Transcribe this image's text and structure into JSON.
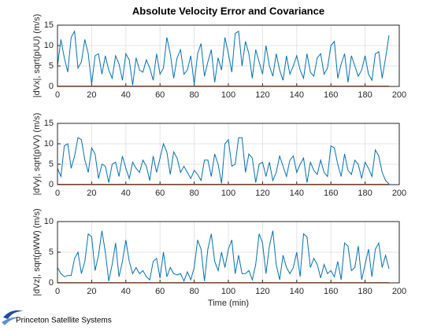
{
  "chart_data": [
    {
      "type": "line",
      "title": "Absolute Velocity Error and Covariance",
      "ylabel": "|dVx|, sqrt(pUU) (m/s)",
      "x": [
        0,
        2,
        4,
        6,
        8,
        10,
        12,
        14,
        16,
        18,
        20,
        22,
        24,
        26,
        28,
        30,
        32,
        34,
        36,
        38,
        40,
        42,
        44,
        46,
        48,
        50,
        52,
        54,
        56,
        58,
        60,
        62,
        64,
        66,
        68,
        70,
        72,
        74,
        76,
        78,
        80,
        82,
        84,
        86,
        88,
        90,
        92,
        94,
        96,
        98,
        100,
        102,
        104,
        106,
        108,
        110,
        112,
        114,
        116,
        118,
        120,
        122,
        124,
        126,
        128,
        130,
        132,
        134,
        136,
        138,
        140,
        142,
        144,
        146,
        148,
        150,
        152,
        154,
        156,
        158,
        160,
        162,
        164,
        166,
        168,
        170,
        172,
        174,
        176,
        178,
        180,
        182,
        184,
        186,
        188,
        190,
        192,
        194
      ],
      "series": [
        {
          "color": "#0072bd",
          "values": [
            5,
            11.5,
            7,
            3.5,
            12,
            13.5,
            4.5,
            6,
            11.5,
            8,
            0.5,
            7.5,
            8,
            3,
            7.5,
            4,
            2,
            7.5,
            5.5,
            1.5,
            8,
            6.5,
            0.3,
            7,
            4,
            3.5,
            6.5,
            4.5,
            1.5,
            8,
            3,
            4.5,
            12,
            8,
            2,
            7,
            9,
            3,
            4,
            7.5,
            0.5,
            8,
            10.5,
            2.5,
            6,
            9,
            1,
            7,
            4,
            12,
            8,
            3.5,
            13,
            13.5,
            5,
            11,
            8,
            2,
            9,
            6,
            3,
            10,
            5,
            2.5,
            8,
            4,
            1.5,
            7.5,
            3,
            5,
            7.5,
            4,
            2,
            8,
            3.5,
            2.5,
            7,
            8,
            3,
            4.5,
            10,
            11,
            2,
            5.5,
            8,
            1,
            7.5,
            5,
            2.5,
            4,
            7.5,
            3,
            1.5,
            8,
            8.5,
            2,
            7,
            12.5
          ]
        },
        {
          "color": "#d95319",
          "values": [
            0.1,
            0.1,
            0.1,
            0.1,
            0.1,
            0.1,
            0.1,
            0.1,
            0.1,
            0.1,
            0.1,
            0.1,
            0.1,
            0.1,
            0.1,
            0.1,
            0.1,
            0.1,
            0.1,
            0.1,
            0.1,
            0.1,
            0.1,
            0.1,
            0.1,
            0.1,
            0.1,
            0.1,
            0.1,
            0.1,
            0.1,
            0.1,
            0.1,
            0.1,
            0.1,
            0.1,
            0.1,
            0.1,
            0.1,
            0.1,
            0.1,
            0.1,
            0.1,
            0.1,
            0.1,
            0.1,
            0.1,
            0.1,
            0.1,
            0.1,
            0.1,
            0.1,
            0.1,
            0.1,
            0.1,
            0.1,
            0.1,
            0.1,
            0.1,
            0.1,
            0.1,
            0.1,
            0.1,
            0.1,
            0.1,
            0.1,
            0.1,
            0.1,
            0.1,
            0.1,
            0.1,
            0.1,
            0.1,
            0.1,
            0.1,
            0.1,
            0.1,
            0.1,
            0.1,
            0.1,
            0.1,
            0.1,
            0.1,
            0.1,
            0.1,
            0.1,
            0.1,
            0.1,
            0.1,
            0.1,
            0.1,
            0.1,
            0.1,
            0.1,
            0.1,
            0.1,
            0.1,
            0.1
          ]
        }
      ],
      "xlim": [
        0,
        200
      ],
      "xticks": [
        0,
        20,
        40,
        60,
        80,
        100,
        120,
        140,
        160,
        180,
        200
      ],
      "ylim": [
        0,
        15
      ],
      "yticks": [
        0,
        5,
        10,
        15
      ],
      "grid": true
    },
    {
      "type": "line",
      "ylabel": "|dVy|, sqrt(pVV) (m/s)",
      "x": [
        0,
        2,
        4,
        6,
        8,
        10,
        12,
        14,
        16,
        18,
        20,
        22,
        24,
        26,
        28,
        30,
        32,
        34,
        36,
        38,
        40,
        42,
        44,
        46,
        48,
        50,
        52,
        54,
        56,
        58,
        60,
        62,
        64,
        66,
        68,
        70,
        72,
        74,
        76,
        78,
        80,
        82,
        84,
        86,
        88,
        90,
        92,
        94,
        96,
        98,
        100,
        102,
        104,
        106,
        108,
        110,
        112,
        114,
        116,
        118,
        120,
        122,
        124,
        126,
        128,
        130,
        132,
        134,
        136,
        138,
        140,
        142,
        144,
        146,
        148,
        150,
        152,
        154,
        156,
        158,
        160,
        162,
        164,
        166,
        168,
        170,
        172,
        174,
        176,
        178,
        180,
        182,
        184,
        186,
        188,
        190,
        192,
        194
      ],
      "series": [
        {
          "color": "#0072bd",
          "values": [
            4,
            2,
            9.5,
            10,
            4,
            7,
            11.5,
            11,
            6,
            3,
            9,
            7.5,
            1.5,
            5,
            4.5,
            0.5,
            5,
            5.5,
            2,
            7,
            4,
            1.5,
            5.5,
            4,
            3,
            6,
            4.5,
            1,
            7,
            3,
            6.5,
            10,
            8,
            2.5,
            8,
            6.5,
            3,
            4.5,
            3,
            1.5,
            3.5,
            2.5,
            1,
            6,
            6,
            2,
            7.5,
            5,
            0.3,
            10,
            11,
            4.5,
            5,
            11.5,
            11.5,
            3,
            7.5,
            6.5,
            0.5,
            5,
            5.5,
            2,
            5.5,
            1,
            3,
            7,
            4.5,
            2,
            6,
            7,
            3,
            5,
            6.5,
            0.5,
            5.5,
            3.5,
            2.5,
            6,
            3,
            2,
            9.5,
            9,
            5,
            2,
            7.5,
            3.5,
            2.5,
            6,
            5,
            1.5,
            5.5,
            4,
            2,
            8.5,
            7,
            3,
            1,
            0.2
          ]
        },
        {
          "color": "#d95319",
          "values": [
            0.1,
            0.1,
            0.1,
            0.1,
            0.1,
            0.1,
            0.1,
            0.1,
            0.1,
            0.1,
            0.1,
            0.1,
            0.1,
            0.1,
            0.1,
            0.1,
            0.1,
            0.1,
            0.1,
            0.1,
            0.1,
            0.1,
            0.1,
            0.1,
            0.1,
            0.1,
            0.1,
            0.1,
            0.1,
            0.1,
            0.1,
            0.1,
            0.1,
            0.1,
            0.1,
            0.1,
            0.1,
            0.1,
            0.1,
            0.1,
            0.1,
            0.1,
            0.1,
            0.1,
            0.1,
            0.1,
            0.1,
            0.1,
            0.1,
            0.1,
            0.1,
            0.1,
            0.1,
            0.1,
            0.1,
            0.1,
            0.1,
            0.1,
            0.1,
            0.1,
            0.1,
            0.1,
            0.1,
            0.1,
            0.1,
            0.1,
            0.1,
            0.1,
            0.1,
            0.1,
            0.1,
            0.1,
            0.1,
            0.1,
            0.1,
            0.1,
            0.1,
            0.1,
            0.1,
            0.1,
            0.1,
            0.1,
            0.1,
            0.1,
            0.1,
            0.1,
            0.1,
            0.1,
            0.1,
            0.1,
            0.1,
            0.1,
            0.1,
            0.1,
            0.1,
            0.1,
            0.1,
            0.1
          ]
        }
      ],
      "xlim": [
        0,
        200
      ],
      "xticks": [
        0,
        20,
        40,
        60,
        80,
        100,
        120,
        140,
        160,
        180,
        200
      ],
      "ylim": [
        0,
        15
      ],
      "yticks": [
        0,
        5,
        10,
        15
      ],
      "grid": true
    },
    {
      "type": "line",
      "ylabel": "|dVz|, sqrt(pWW) (m/s)",
      "xlabel": "Time (min)",
      "x": [
        0,
        2,
        4,
        6,
        8,
        10,
        12,
        14,
        16,
        18,
        20,
        22,
        24,
        26,
        28,
        30,
        32,
        34,
        36,
        38,
        40,
        42,
        44,
        46,
        48,
        50,
        52,
        54,
        56,
        58,
        60,
        62,
        64,
        66,
        68,
        70,
        72,
        74,
        76,
        78,
        80,
        82,
        84,
        86,
        88,
        90,
        92,
        94,
        96,
        98,
        100,
        102,
        104,
        106,
        108,
        110,
        112,
        114,
        116,
        118,
        120,
        122,
        124,
        126,
        128,
        130,
        132,
        134,
        136,
        138,
        140,
        142,
        144,
        146,
        148,
        150,
        152,
        154,
        156,
        158,
        160,
        162,
        164,
        166,
        168,
        170,
        172,
        174,
        176,
        178,
        180,
        182,
        184,
        186,
        188,
        190,
        192,
        194
      ],
      "series": [
        {
          "color": "#0072bd",
          "values": [
            2.5,
            1.5,
            1,
            1.2,
            1.2,
            4,
            5,
            1.5,
            3.5,
            8,
            7.5,
            2,
            4.5,
            8.5,
            5,
            0.3,
            3,
            6.5,
            1,
            3.5,
            7,
            3.5,
            1.5,
            2.5,
            1.5,
            2,
            1,
            0.5,
            3.5,
            4,
            0.8,
            5,
            1,
            2.5,
            1.5,
            1.3,
            1.5,
            0.3,
            1.8,
            0.5,
            2.5,
            7,
            5.5,
            0.3,
            5.5,
            8,
            3.5,
            2,
            5,
            2.5,
            5.5,
            7,
            1.5,
            4.5,
            1.5,
            1.5,
            2,
            0.5,
            3,
            8,
            6.5,
            1.5,
            6,
            8.5,
            3,
            0.5,
            4.5,
            2.5,
            1.5,
            2.5,
            5,
            1,
            8,
            7.5,
            2.5,
            4,
            3,
            0.8,
            3,
            1.5,
            2,
            1,
            3.5,
            0.5,
            6.5,
            6,
            2,
            2.5,
            6,
            0.5,
            3,
            5.5,
            1,
            5.5,
            6.5,
            2.5,
            4.5,
            2.3
          ]
        },
        {
          "color": "#d95319",
          "values": [
            0.05,
            0.05,
            0.05,
            0.05,
            0.05,
            0.05,
            0.05,
            0.05,
            0.05,
            0.05,
            0.05,
            0.05,
            0.05,
            0.05,
            0.05,
            0.05,
            0.05,
            0.05,
            0.05,
            0.05,
            0.05,
            0.05,
            0.05,
            0.05,
            0.05,
            0.05,
            0.05,
            0.05,
            0.05,
            0.05,
            0.05,
            0.05,
            0.05,
            0.05,
            0.05,
            0.05,
            0.05,
            0.05,
            0.05,
            0.05,
            0.05,
            0.05,
            0.05,
            0.05,
            0.05,
            0.05,
            0.05,
            0.05,
            0.05,
            0.05,
            0.05,
            0.05,
            0.05,
            0.05,
            0.05,
            0.05,
            0.05,
            0.05,
            0.05,
            0.05,
            0.05,
            0.05,
            0.05,
            0.05,
            0.05,
            0.05,
            0.05,
            0.05,
            0.05,
            0.05,
            0.05,
            0.05,
            0.05,
            0.05,
            0.05,
            0.05,
            0.05,
            0.05,
            0.05,
            0.05,
            0.05,
            0.05,
            0.05,
            0.05,
            0.05,
            0.05,
            0.05,
            0.05,
            0.05,
            0.05,
            0.05,
            0.05,
            0.05,
            0.05,
            0.05,
            0.05,
            0.05,
            0.05
          ]
        }
      ],
      "xlim": [
        0,
        200
      ],
      "xticks": [
        0,
        20,
        40,
        60,
        80,
        100,
        120,
        140,
        160,
        180,
        200
      ],
      "ylim": [
        0,
        10
      ],
      "yticks": [
        0,
        5,
        10
      ],
      "grid": true
    }
  ],
  "footer": {
    "text": "Princeton Satellite Systems"
  }
}
